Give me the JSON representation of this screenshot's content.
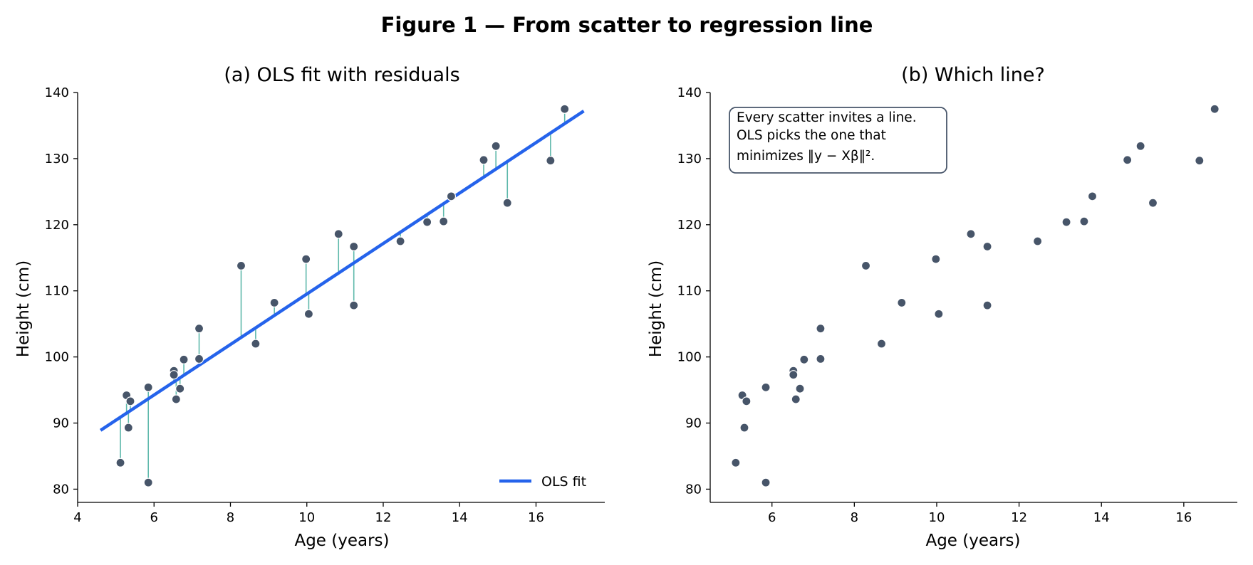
{
  "figure": {
    "title": "Figure 1 — From scatter to regression line"
  },
  "chart_data": [
    {
      "type": "scatter",
      "title": "(a) OLS fit with residuals",
      "xlabel": "Age (years)",
      "ylabel": "Height (cm)",
      "xlim": [
        4.0,
        17.8
      ],
      "ylim": [
        78.0,
        140.0
      ],
      "xticks": [
        4,
        6,
        8,
        10,
        12,
        14,
        16
      ],
      "yticks": [
        80,
        90,
        100,
        110,
        120,
        130,
        140
      ],
      "grid": false,
      "legend": {
        "placement": "lower-right",
        "entries": [
          "OLS fit"
        ]
      },
      "points": [
        {
          "x": 5.12,
          "y": 84.0
        },
        {
          "x": 5.28,
          "y": 94.2
        },
        {
          "x": 5.33,
          "y": 89.3
        },
        {
          "x": 5.38,
          "y": 93.3
        },
        {
          "x": 5.85,
          "y": 95.4
        },
        {
          "x": 5.85,
          "y": 81.0
        },
        {
          "x": 6.52,
          "y": 97.9
        },
        {
          "x": 6.52,
          "y": 97.3
        },
        {
          "x": 6.58,
          "y": 93.6
        },
        {
          "x": 6.68,
          "y": 95.2
        },
        {
          "x": 6.78,
          "y": 99.6
        },
        {
          "x": 7.18,
          "y": 99.7
        },
        {
          "x": 7.18,
          "y": 104.3
        },
        {
          "x": 8.28,
          "y": 113.8
        },
        {
          "x": 8.66,
          "y": 102.0
        },
        {
          "x": 9.15,
          "y": 108.2
        },
        {
          "x": 9.98,
          "y": 114.8
        },
        {
          "x": 10.05,
          "y": 106.5
        },
        {
          "x": 10.83,
          "y": 118.6
        },
        {
          "x": 11.23,
          "y": 116.7
        },
        {
          "x": 11.23,
          "y": 107.8
        },
        {
          "x": 12.45,
          "y": 117.5
        },
        {
          "x": 13.15,
          "y": 120.4
        },
        {
          "x": 13.58,
          "y": 120.5
        },
        {
          "x": 13.78,
          "y": 124.3
        },
        {
          "x": 14.63,
          "y": 129.8
        },
        {
          "x": 14.95,
          "y": 131.9
        },
        {
          "x": 15.25,
          "y": 123.3
        },
        {
          "x": 16.38,
          "y": 129.7
        },
        {
          "x": 16.75,
          "y": 137.5
        }
      ],
      "fit": {
        "name": "OLS fit",
        "x": [
          4.6,
          17.25
        ],
        "y": [
          88.9,
          137.2
        ]
      },
      "colors": {
        "points": "#475569",
        "fit": "#2563eb",
        "residuals": "#5eb8ab"
      }
    },
    {
      "type": "scatter",
      "title": "(b) Which line?",
      "xlabel": "Age (years)",
      "ylabel": "Height (cm)",
      "xlim": [
        4.5,
        17.3
      ],
      "ylim": [
        78.0,
        140.0
      ],
      "xticks": [
        6,
        8,
        10,
        12,
        14,
        16
      ],
      "yticks": [
        80,
        90,
        100,
        110,
        120,
        130,
        140
      ],
      "grid": false,
      "annotation": {
        "placement": "top-left",
        "lines": [
          "Every scatter invites a line.",
          "OLS picks the one that",
          "minimizes ‖y − Xβ‖²."
        ]
      },
      "points": [
        {
          "x": 5.12,
          "y": 84.0
        },
        {
          "x": 5.28,
          "y": 94.2
        },
        {
          "x": 5.33,
          "y": 89.3
        },
        {
          "x": 5.38,
          "y": 93.3
        },
        {
          "x": 5.85,
          "y": 95.4
        },
        {
          "x": 5.85,
          "y": 81.0
        },
        {
          "x": 6.52,
          "y": 97.9
        },
        {
          "x": 6.52,
          "y": 97.3
        },
        {
          "x": 6.58,
          "y": 93.6
        },
        {
          "x": 6.68,
          "y": 95.2
        },
        {
          "x": 6.78,
          "y": 99.6
        },
        {
          "x": 7.18,
          "y": 99.7
        },
        {
          "x": 7.18,
          "y": 104.3
        },
        {
          "x": 8.28,
          "y": 113.8
        },
        {
          "x": 8.66,
          "y": 102.0
        },
        {
          "x": 9.15,
          "y": 108.2
        },
        {
          "x": 9.98,
          "y": 114.8
        },
        {
          "x": 10.05,
          "y": 106.5
        },
        {
          "x": 10.83,
          "y": 118.6
        },
        {
          "x": 11.23,
          "y": 116.7
        },
        {
          "x": 11.23,
          "y": 107.8
        },
        {
          "x": 12.45,
          "y": 117.5
        },
        {
          "x": 13.15,
          "y": 120.4
        },
        {
          "x": 13.58,
          "y": 120.5
        },
        {
          "x": 13.78,
          "y": 124.3
        },
        {
          "x": 14.63,
          "y": 129.8
        },
        {
          "x": 14.95,
          "y": 131.9
        },
        {
          "x": 15.25,
          "y": 123.3
        },
        {
          "x": 16.38,
          "y": 129.7
        },
        {
          "x": 16.75,
          "y": 137.5
        }
      ],
      "colors": {
        "points": "#475569",
        "annotation_border": "#475569"
      }
    }
  ]
}
